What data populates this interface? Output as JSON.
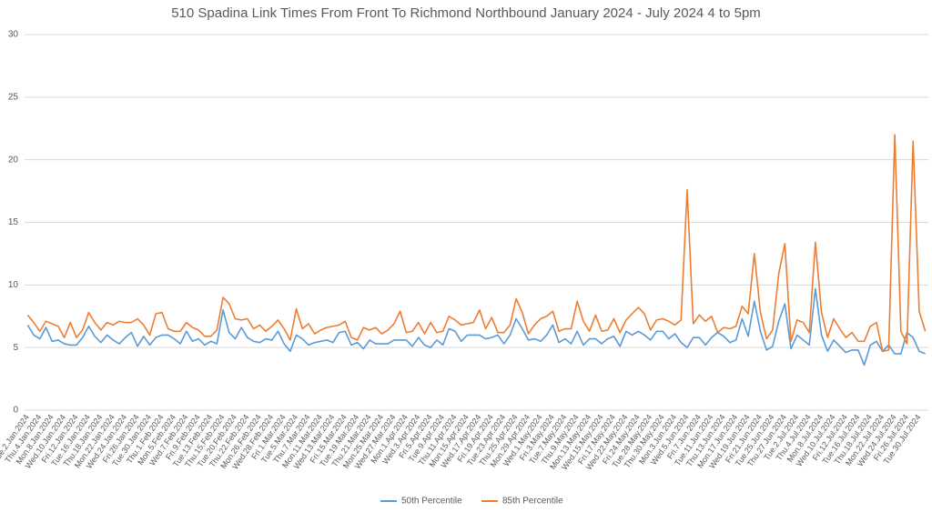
{
  "chart_data": {
    "type": "line",
    "title": "510 Spadina Link Times From Front To Richmond Northbound January 2024 - July 2024 4 to 5pm",
    "categories": [
      "Tue.2.Jan.2024",
      null,
      "Thu.4.Jan.2024",
      null,
      "Mon.8.Jan.2024",
      null,
      "Wed.10.Jan.2024",
      null,
      "Fri.12.Jan.2024",
      null,
      "Tue.16.Jan.2024",
      null,
      "Thu.18.Jan.2024",
      null,
      "Mon.22.Jan.2024",
      null,
      "Wed.24.Jan.2024",
      null,
      "Fri.26.Jan.2024",
      null,
      "Tue.30.Jan.2024",
      null,
      "Thu.1.Feb.2024",
      null,
      "Mon.5.Feb.2024",
      null,
      "Wed.7.Feb.2024",
      null,
      "Fri.9.Feb.2024",
      null,
      "Tue.13.Feb.2024",
      null,
      "Thu.15.Feb.2024",
      null,
      "Tue.20.Feb.2024",
      null,
      "Thu.22.Feb.2024",
      null,
      "Mon.26.Feb.2024",
      null,
      "Wed.28.Feb.2024",
      null,
      "Fri.1.Mar.2024",
      null,
      "Tue.5.Mar.2024",
      null,
      "Thu.7.Mar.2024",
      null,
      "Mon.11.Mar.2024",
      null,
      "Wed.13.Mar.2024",
      null,
      "Fri.15.Mar.2024",
      null,
      "Tue.19.Mar.2024",
      null,
      "Thu.21.Mar.2024",
      null,
      "Mon.25.Mar.2024",
      null,
      "Wed.27.Mar.2024",
      null,
      "Mon.1.Apr.2024",
      null,
      "Wed.3.Apr.2024",
      null,
      "Fri.5.Apr.2024",
      null,
      "Tue.9.Apr.2024",
      null,
      "Thu.11.Apr.2024",
      null,
      "Mon.15.Apr.2024",
      null,
      "Wed.17.Apr.2024",
      null,
      "Fri.19.Apr.2024",
      null,
      "Tue.23.Apr.2024",
      null,
      "Thu.25.Apr.2024",
      null,
      "Mon.29.Apr.2024",
      null,
      "Wed.1.May.2024",
      null,
      "Fri.3.May.2024",
      null,
      "Tue.7.May.2024",
      null,
      "Thu.9.May.2024",
      null,
      "Mon.13.May.2024",
      null,
      "Wed.15.May.2024",
      null,
      "Fri.17.May.2024",
      null,
      "Wed.22.May.2024",
      null,
      "Fri.24.May.2024",
      null,
      "Tue.28.May.2024",
      null,
      "Thu.30.May.2024",
      null,
      "Mon.3.Jun.2024",
      null,
      "Wed.5.Jun.2024",
      null,
      "Fri.7.Jun.2024",
      null,
      "Tue.11.Jun.2024",
      null,
      "Thu.13.Jun.2024",
      null,
      "Mon.17.Jun.2024",
      null,
      "Wed.19.Jun.2024",
      null,
      "Fri.21.Jun.2024",
      null,
      "Tue.25.Jun.2024",
      null,
      "Thu.27.Jun.2024",
      null,
      "Tue.2.Jul.2024",
      null,
      "Thu.4.Jul.2024",
      null,
      "Mon.8.Jul.2024",
      null,
      "Wed.10.Jul.2024",
      null,
      "Fri.12.Jul.2024",
      null,
      "Tue.16.Jul.2024",
      null,
      "Thu.18.Jul.2024",
      null,
      "Mon.22.Jul.2024",
      null,
      "Wed.24.Jul.2024",
      null,
      "Fri.26.Jul.2024",
      null,
      "Tue.30.Jul.2024",
      null
    ],
    "series": [
      {
        "name": "50th Percentile",
        "color": "#5b9bd5",
        "values": [
          6.8,
          6.0,
          5.7,
          6.6,
          5.5,
          5.6,
          5.3,
          5.2,
          5.2,
          5.8,
          6.7,
          5.9,
          5.4,
          6.0,
          5.6,
          5.3,
          5.8,
          6.2,
          5.1,
          5.9,
          5.2,
          5.8,
          6.0,
          6.0,
          5.7,
          5.3,
          6.3,
          5.5,
          5.7,
          5.2,
          5.5,
          5.3,
          8.0,
          6.2,
          5.7,
          6.6,
          5.8,
          5.5,
          5.4,
          5.7,
          5.6,
          6.3,
          5.3,
          4.7,
          6.0,
          5.7,
          5.2,
          5.4,
          5.5,
          5.6,
          5.4,
          6.2,
          6.3,
          5.2,
          5.4,
          4.9,
          5.6,
          5.3,
          5.3,
          5.3,
          5.6,
          5.6,
          5.6,
          5.1,
          5.8,
          5.2,
          5.0,
          5.6,
          5.2,
          6.5,
          6.3,
          5.5,
          6.0,
          6.0,
          6.0,
          5.7,
          5.8,
          6.0,
          5.3,
          6.0,
          7.3,
          6.5,
          5.6,
          5.7,
          5.5,
          6.0,
          6.8,
          5.4,
          5.7,
          5.3,
          6.3,
          5.2,
          5.7,
          5.7,
          5.3,
          5.7,
          5.9,
          5.1,
          6.3,
          6.0,
          6.3,
          6.0,
          5.6,
          6.3,
          6.3,
          5.7,
          6.1,
          5.4,
          5.0,
          5.8,
          5.8,
          5.2,
          5.8,
          6.2,
          5.9,
          5.4,
          5.6,
          7.3,
          5.9,
          8.7,
          6.3,
          4.8,
          5.1,
          7.1,
          8.5,
          4.9,
          6.0,
          5.6,
          5.2,
          9.7,
          6.0,
          4.7,
          5.6,
          5.1,
          4.6,
          4.8,
          4.8,
          3.6,
          5.2,
          5.5,
          4.7,
          5.2,
          4.5,
          4.5,
          6.2,
          5.8,
          4.7,
          4.5
        ]
      },
      {
        "name": "85th Percentile",
        "color": "#ed7d31",
        "values": [
          7.6,
          7.0,
          6.3,
          7.1,
          6.9,
          6.7,
          5.8,
          7.0,
          5.8,
          6.4,
          7.8,
          7.0,
          6.4,
          7.0,
          6.8,
          7.1,
          7.0,
          7.0,
          7.3,
          6.8,
          6.0,
          7.7,
          7.8,
          6.5,
          6.3,
          6.3,
          7.0,
          6.6,
          6.4,
          5.9,
          5.9,
          6.4,
          9.0,
          8.5,
          7.3,
          7.2,
          7.3,
          6.5,
          6.8,
          6.3,
          6.7,
          7.2,
          6.5,
          5.6,
          8.1,
          6.5,
          6.9,
          6.1,
          6.4,
          6.6,
          6.7,
          6.8,
          7.1,
          5.8,
          5.6,
          6.6,
          6.4,
          6.6,
          6.1,
          6.4,
          6.9,
          7.9,
          6.2,
          6.3,
          7.0,
          6.1,
          7.0,
          6.2,
          6.3,
          7.5,
          7.2,
          6.8,
          6.9,
          7.0,
          8.0,
          6.5,
          7.4,
          6.2,
          6.2,
          6.8,
          8.9,
          7.8,
          6.1,
          6.8,
          7.3,
          7.5,
          7.9,
          6.3,
          6.5,
          6.5,
          8.7,
          7.1,
          6.3,
          7.6,
          6.3,
          6.4,
          7.3,
          6.2,
          7.2,
          7.7,
          8.2,
          7.7,
          6.4,
          7.2,
          7.3,
          7.1,
          6.8,
          7.2,
          17.6,
          6.9,
          7.6,
          7.1,
          7.5,
          6.2,
          6.6,
          6.5,
          6.7,
          8.3,
          7.7,
          12.5,
          7.8,
          5.7,
          6.4,
          10.9,
          13.3,
          5.5,
          7.2,
          7.0,
          6.2,
          13.4,
          7.8,
          5.8,
          7.3,
          6.5,
          5.8,
          6.2,
          5.5,
          5.5,
          6.7,
          7.0,
          4.7,
          4.8,
          22.0,
          6.3,
          5.3,
          21.5,
          7.9,
          6.3
        ]
      }
    ],
    "ylim": [
      0,
      30
    ],
    "yticks": [
      0,
      5,
      10,
      15,
      20,
      25,
      30
    ],
    "grid": true,
    "legend": "bottom"
  }
}
